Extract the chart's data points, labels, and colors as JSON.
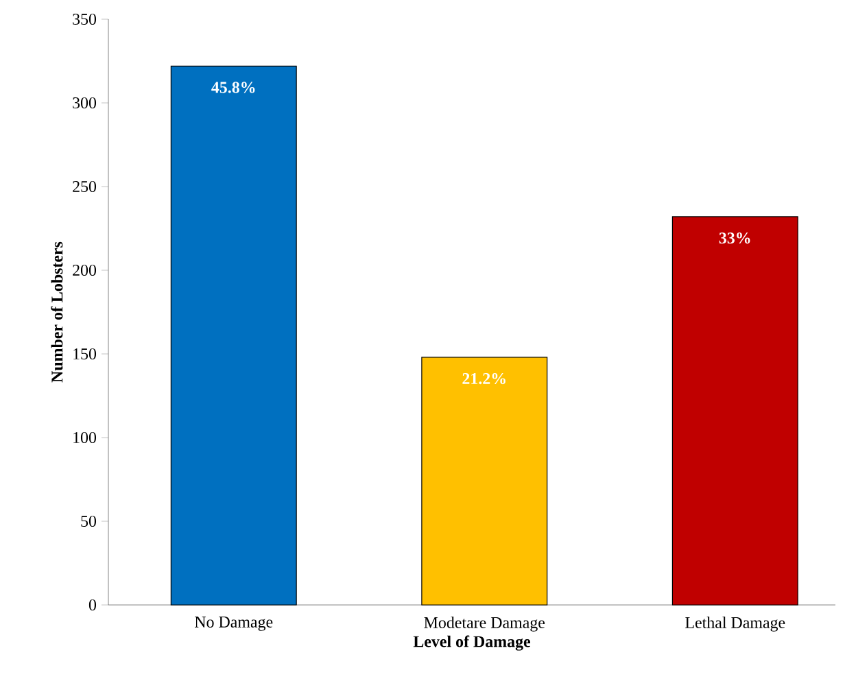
{
  "chart_data": {
    "type": "bar",
    "xlabel": "Level of Damage",
    "ylabel": "Number of Lobsters",
    "categories": [
      "No Damage",
      "Modetare Damage",
      "Lethal Damage"
    ],
    "values": [
      322,
      148,
      232
    ],
    "colors": [
      "#0070c0",
      "#ffc000",
      "#c00000"
    ],
    "annotations": [
      {
        "text": "45.8%",
        "x": "No Damage",
        "y": 322
      },
      {
        "text": "21.2%",
        "x": "Modetare Damage",
        "y": 148
      },
      {
        "text": "33%",
        "x": "Lethal Damage",
        "y": 232
      }
    ],
    "ylim": [
      0,
      350
    ],
    "yticks": [
      0,
      50,
      100,
      150,
      200,
      250,
      300,
      350
    ],
    "grid": false
  }
}
